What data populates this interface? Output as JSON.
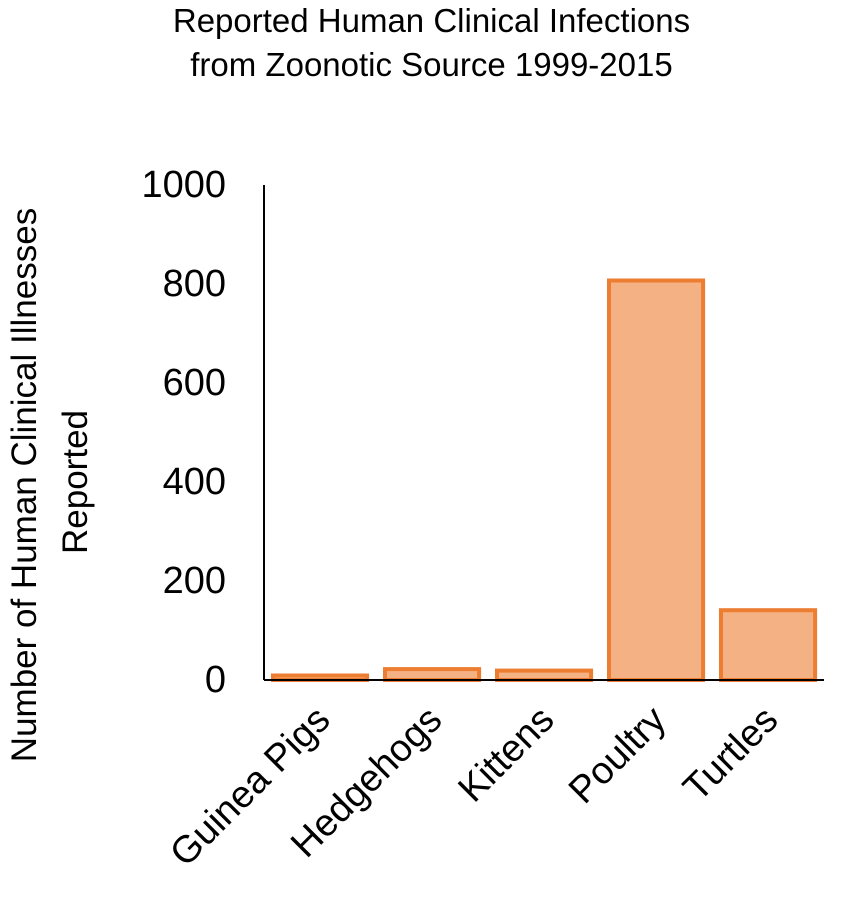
{
  "chart_data": {
    "type": "bar",
    "title_lines": [
      "Reported Human Clinical Infections",
      "from Zoonotic Source 1999-2015"
    ],
    "ylabel_lines": [
      "Number of Human Clinical Illnesses",
      "Reported"
    ],
    "xlabel": "",
    "categories": [
      "Guinea Pigs",
      "Hedgehogs",
      "Kittens",
      "Poultry",
      "Turtles"
    ],
    "values": [
      9,
      22,
      19,
      807,
      141
    ],
    "ylim": [
      0,
      1000
    ],
    "yticks": [
      "0",
      "200",
      "400",
      "600",
      "800",
      "1000"
    ],
    "ytick_values": [
      0,
      200,
      400,
      600,
      800,
      1000
    ],
    "grid": false,
    "legend": "none",
    "colors": {
      "bar_fill": "#f4b183",
      "bar_stroke": "#ed7d31",
      "axis": "#000000",
      "text": "#000000"
    }
  }
}
